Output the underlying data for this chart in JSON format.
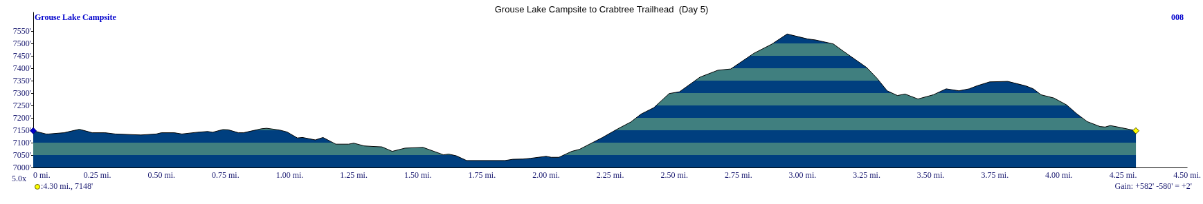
{
  "chart_data": {
    "type": "area",
    "title": "Grouse Lake Campsite to Crabtree Trailhead  (Day 5)",
    "annotations": [
      "Grouse Lake Campsite",
      "008",
      "5.0x",
      ":4.30 mi., 7148'",
      "Gain: +582' -580' = +2'"
    ],
    "x": [
      0,
      0.05,
      0.06,
      0.12,
      0.18,
      0.23,
      0.28,
      0.32,
      0.42,
      0.48,
      0.5,
      0.55,
      0.58,
      0.64,
      0.68,
      0.7,
      0.74,
      0.76,
      0.8,
      0.82,
      0.89,
      0.91,
      0.96,
      0.99,
      1.03,
      1.05,
      1.1,
      1.13,
      1.18,
      1.23,
      1.25,
      1.29,
      1.32,
      1.36,
      1.4,
      1.45,
      1.52,
      1.6,
      1.62,
      1.65,
      1.69,
      1.84,
      1.87,
      1.91,
      1.94,
      2.0,
      2.02,
      2.05,
      2.1,
      2.13,
      2.22,
      2.28,
      2.33,
      2.37,
      2.42,
      2.48,
      2.52,
      2.6,
      2.67,
      2.72,
      2.81,
      2.88,
      2.94,
      3.02,
      3.05,
      3.12,
      3.16,
      3.25,
      3.29,
      3.33,
      3.37,
      3.4,
      3.45,
      3.51,
      3.56,
      3.61,
      3.65,
      3.68,
      3.73,
      3.8,
      3.87,
      3.9,
      3.93,
      3.98,
      4.03,
      4.07,
      4.11,
      4.16,
      4.18,
      4.2,
      4.24,
      4.3
    ],
    "series": [
      {
        "color": "#003f7f",
        "values": [
          7148,
          7135,
          7135,
          7140,
          7154,
          7140,
          7140,
          7135,
          7131,
          7135,
          7140,
          7140,
          7135,
          7142,
          7145,
          7142,
          7153,
          7152,
          7140,
          7140,
          7156,
          7158,
          7151,
          7143,
          7119,
          7121,
          7111,
          7121,
          7094,
          7094,
          7098,
          7087,
          7085,
          7083,
          7065,
          7078,
          7081,
          7051,
          7054,
          7047,
          7028,
          7028,
          7033,
          7034,
          7037,
          7045,
          7041,
          7041,
          7065,
          7073,
          7121,
          7156,
          7183,
          7215,
          7241,
          7298,
          7305,
          7364,
          7392,
          7397,
          7460,
          7497,
          7538,
          7518,
          7514,
          7498,
          7468,
          7403,
          7360,
          7309,
          7290,
          7296,
          7276,
          7293,
          7317,
          7309,
          7317,
          7329,
          7345,
          7347,
          7329,
          7317,
          7293,
          7280,
          7252,
          7216,
          7185,
          7165,
          7163,
          7169,
          7161,
          7148
        ]
      }
    ],
    "xlim": [
      0,
      4.5
    ],
    "xticks": [
      {
        "value": 0,
        "label": "0 mi."
      },
      {
        "value": 0.25,
        "label": "0.25 mi."
      },
      {
        "value": 0.5,
        "label": "0.50 mi."
      },
      {
        "value": 0.75,
        "label": "0.75 mi."
      },
      {
        "value": 1,
        "label": "1.00 mi."
      },
      {
        "value": 1.25,
        "label": "1.25 mi."
      },
      {
        "value": 1.5,
        "label": "1.50 mi."
      },
      {
        "value": 1.75,
        "label": "1.75 mi."
      },
      {
        "value": 2,
        "label": "2.00 mi."
      },
      {
        "value": 2.25,
        "label": "2.25 mi."
      },
      {
        "value": 2.5,
        "label": "2.50 mi."
      },
      {
        "value": 2.75,
        "label": "2.75 mi."
      },
      {
        "value": 3,
        "label": "3.00 mi."
      },
      {
        "value": 3.25,
        "label": "3.25 mi."
      },
      {
        "value": 3.5,
        "label": "3.50 mi."
      },
      {
        "value": 3.75,
        "label": "3.75 mi."
      },
      {
        "value": 4,
        "label": "4.00 mi."
      },
      {
        "value": 4.25,
        "label": "4.25 mi."
      },
      {
        "value": 4.5,
        "label": "4.50 mi."
      }
    ],
    "ylim": [
      7000,
      7625
    ],
    "yticks": [
      {
        "value": 7000,
        "label": "7000'"
      },
      {
        "value": 7050,
        "label": "7050'"
      },
      {
        "value": 7100,
        "label": "7100'"
      },
      {
        "value": 7150,
        "label": "7150'"
      },
      {
        "value": 7200,
        "label": "7200'"
      },
      {
        "value": 7250,
        "label": "7250'"
      },
      {
        "value": 7300,
        "label": "7300'"
      },
      {
        "value": 7350,
        "label": "7350'"
      },
      {
        "value": 7400,
        "label": "7400'"
      },
      {
        "value": 7450,
        "label": "7450'"
      },
      {
        "value": 7500,
        "label": "7500'"
      },
      {
        "value": 7550,
        "label": "7550'"
      }
    ],
    "grid": false
  }
}
